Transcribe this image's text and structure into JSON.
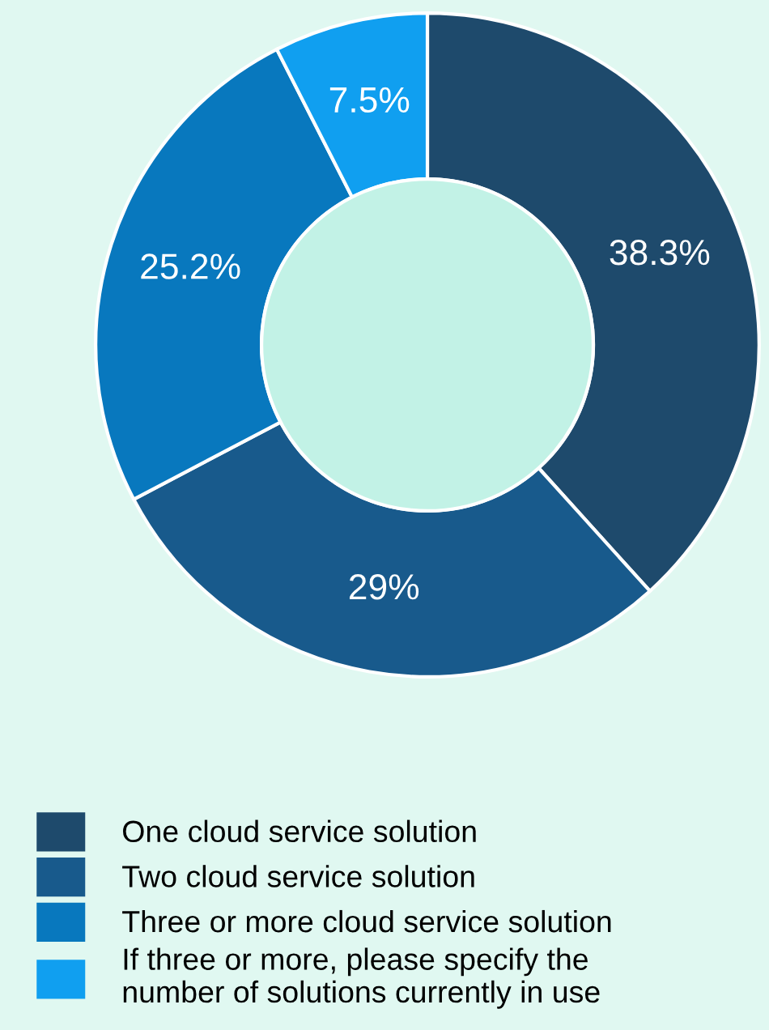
{
  "chart_data": {
    "type": "donut",
    "categories": [
      "One cloud service solution",
      "Two cloud service solution",
      "Three or more cloud service solution",
      "If three or more, please specify the\nnumber of solutions currently in use"
    ],
    "values": [
      38.3,
      29,
      25.2,
      7.5
    ],
    "value_labels": [
      "38.3%",
      "29%",
      "25.2%",
      "7.5%"
    ],
    "colors": [
      "#1e4a6c",
      "#185a8c",
      "#0878be",
      "#109ff0"
    ],
    "legend": "bottom"
  }
}
